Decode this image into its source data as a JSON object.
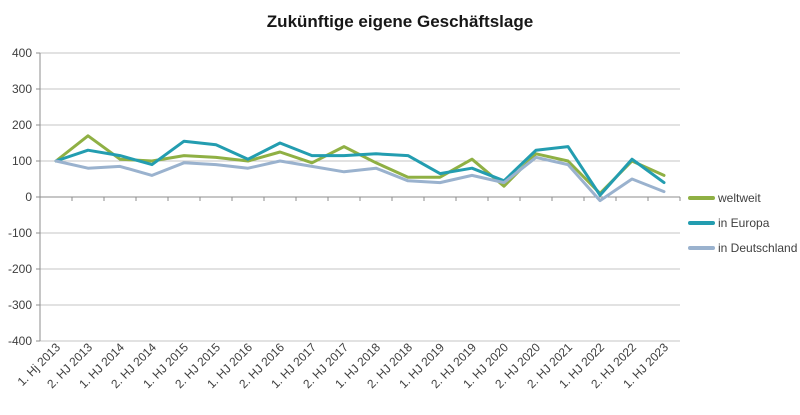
{
  "title": "Zukünftige eigene Geschäftslage",
  "chart_data": {
    "type": "line",
    "title": "Zukünftige eigene Geschäftslage",
    "categories": [
      "1. Hj 2013",
      "2. HJ 2013",
      "1. HJ 2014",
      "2. HJ 2014",
      "1. HJ 2015",
      "2. HJ 2015",
      "1. HJ 2016",
      "2. HJ 2016",
      "1. HJ 2017",
      "2. HJ 2017",
      "1. HJ 2018",
      "2. HJ 2018",
      "1. HJ 2019",
      "2. HJ 2019",
      "1. HJ 2020",
      "2. HJ 2020",
      "2. HJ 2021",
      "1. HJ 2022",
      "2. HJ 2022",
      "1. HJ 2023"
    ],
    "series": [
      {
        "name": "weltweit",
        "color": "#8FB044",
        "values": [
          100,
          170,
          105,
          100,
          115,
          110,
          100,
          125,
          95,
          140,
          95,
          55,
          55,
          105,
          30,
          120,
          100,
          10,
          100,
          60
        ]
      },
      {
        "name": "in Europa",
        "color": "#239DB0",
        "values": [
          100,
          130,
          115,
          90,
          155,
          145,
          105,
          150,
          115,
          115,
          120,
          115,
          65,
          80,
          45,
          130,
          140,
          5,
          105,
          40
        ]
      },
      {
        "name": "in Deutschland",
        "color": "#9AB2CE",
        "values": [
          100,
          80,
          85,
          60,
          95,
          90,
          80,
          100,
          85,
          70,
          80,
          45,
          40,
          60,
          40,
          110,
          90,
          -10,
          50,
          15
        ]
      }
    ],
    "xlabel": "",
    "ylabel": "",
    "ylim": [
      -400,
      400
    ],
    "y_ticks": [
      400,
      300,
      200,
      100,
      0,
      -100,
      -200,
      -300,
      -400
    ],
    "grid": true,
    "legend_position": "right"
  },
  "colors": {
    "background": "#FFFFFF",
    "gridline": "#C6C6C6",
    "axis": "#8C8C8C",
    "tick_text": "#3F3F3F",
    "title_text": "#171717"
  }
}
